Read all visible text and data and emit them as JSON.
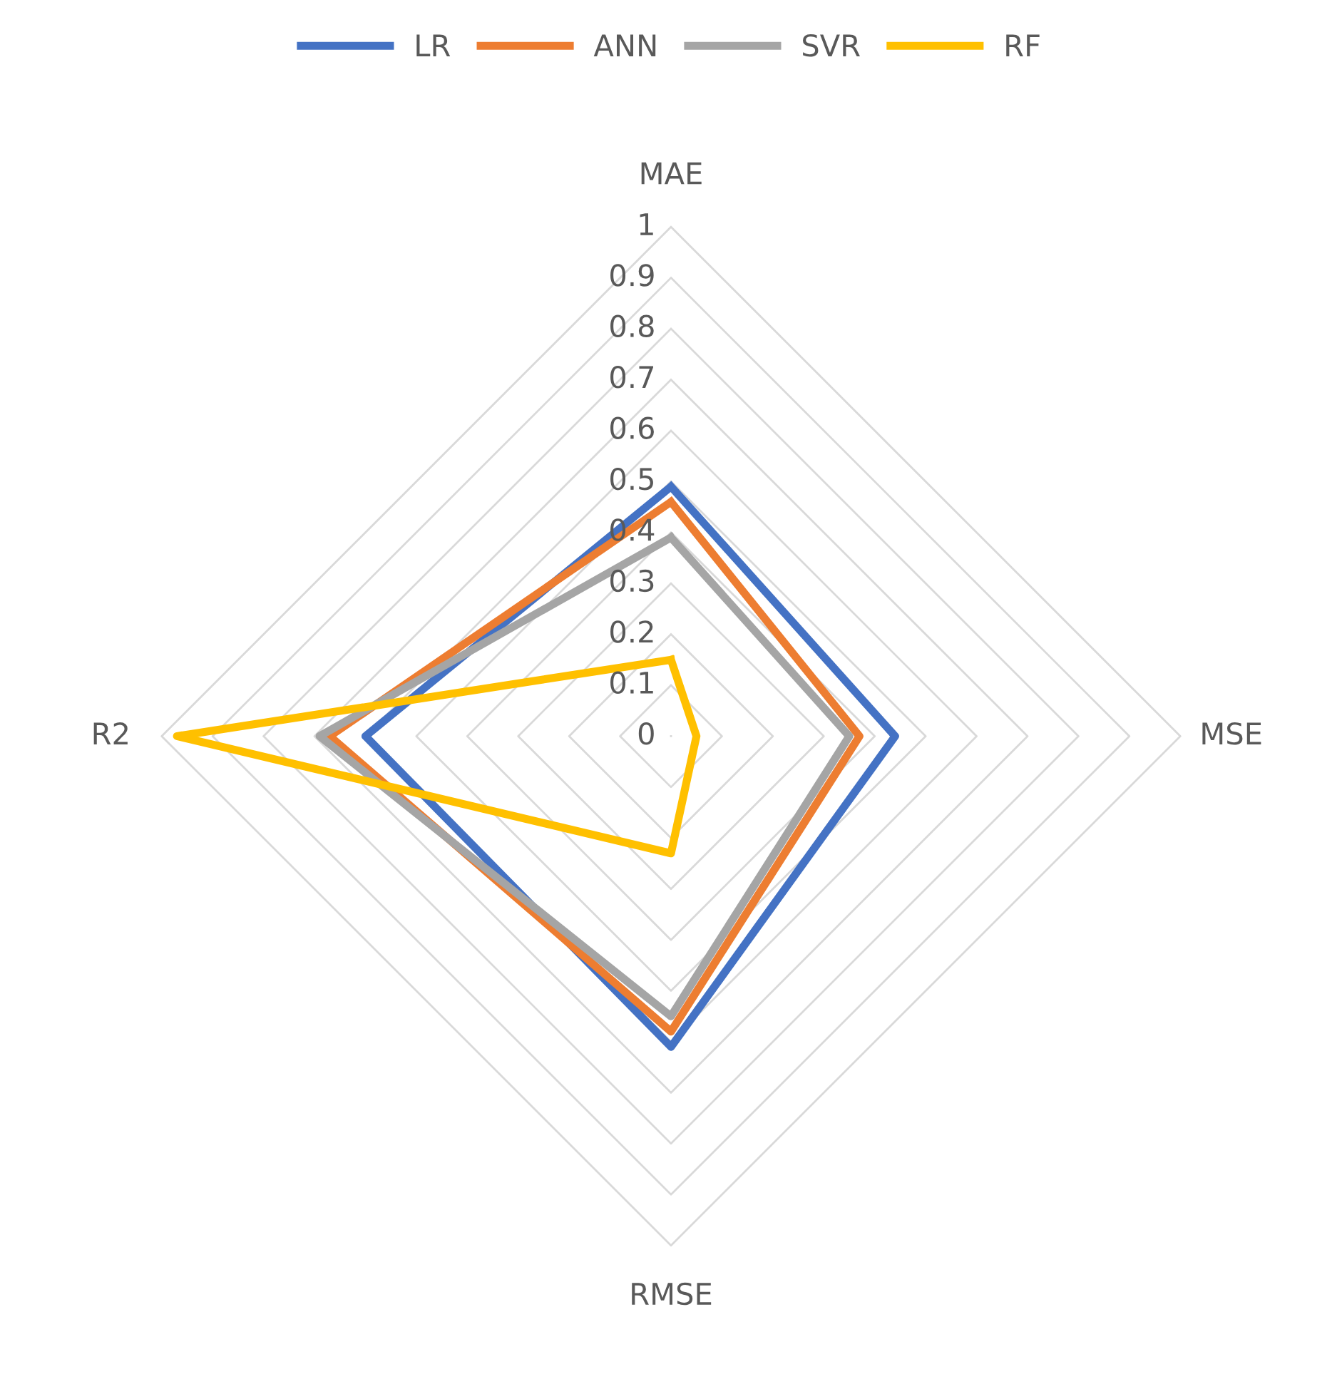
{
  "chart_data": {
    "type": "radar",
    "categories": [
      "MAE",
      "MSE",
      "RMSE",
      "R2"
    ],
    "series": [
      {
        "name": "LR",
        "color": "#4472c4",
        "values": [
          0.49,
          0.44,
          0.61,
          0.6
        ]
      },
      {
        "name": "ANN",
        "color": "#ed7d31",
        "values": [
          0.46,
          0.37,
          0.58,
          0.67
        ]
      },
      {
        "name": "SVR",
        "color": "#a5a5a5",
        "values": [
          0.39,
          0.35,
          0.55,
          0.69
        ]
      },
      {
        "name": "RF",
        "color": "#ffc000",
        "values": [
          0.15,
          0.05,
          0.23,
          0.97
        ]
      }
    ],
    "ylim": [
      0,
      1
    ],
    "yticks": [
      0,
      0.1,
      0.2,
      0.3,
      0.4,
      0.5,
      0.6,
      0.7,
      0.8,
      0.9,
      1
    ],
    "legend": "top",
    "marker": "none",
    "line_style": "solid"
  }
}
